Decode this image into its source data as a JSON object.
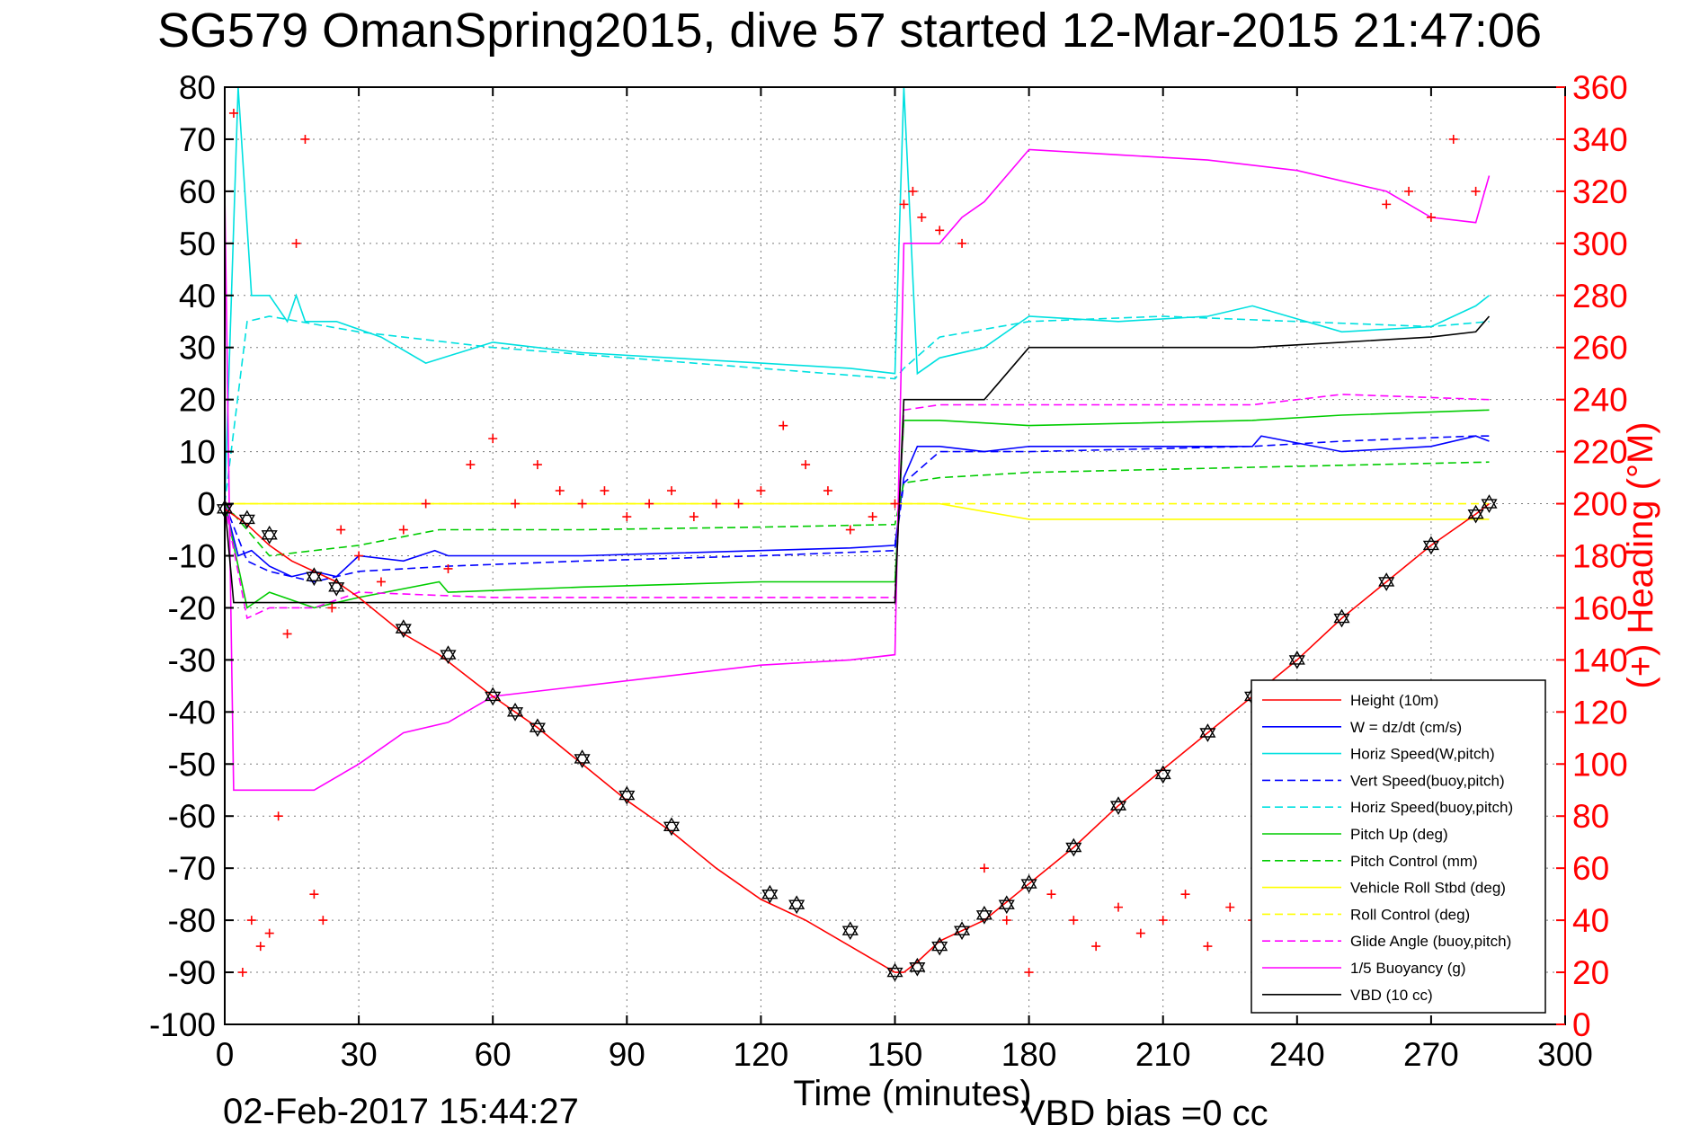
{
  "figure": {
    "title": "SG579 OmanSpring2015, dive 57 started 12-Mar-2015 21:47:06",
    "xlabel": "Time (minutes)",
    "ylabel_right": "(+) Heading (°M)",
    "timestamp": "02-Feb-2017 15:44:27",
    "vbd_note": "VBD bias =0 cc"
  },
  "chart_data": {
    "type": "line",
    "title": "SG579 OmanSpring2015, dive 57 started 12-Mar-2015 21:47:06",
    "xlabel": "Time (minutes)",
    "ylabel": "",
    "ylabel_right": "(+) Heading (°M)",
    "xlim": [
      0,
      300
    ],
    "ylim": [
      -100,
      80
    ],
    "ylim_right": [
      0,
      360
    ],
    "xticks": [
      0,
      30,
      60,
      90,
      120,
      150,
      180,
      210,
      240,
      270,
      300
    ],
    "yticks": [
      -100,
      -90,
      -80,
      -70,
      -60,
      -50,
      -40,
      -30,
      -20,
      -10,
      0,
      10,
      20,
      30,
      40,
      50,
      60,
      70,
      80
    ],
    "yticks_right": [
      0,
      20,
      40,
      60,
      80,
      100,
      120,
      140,
      160,
      180,
      200,
      220,
      240,
      260,
      280,
      300,
      320,
      340,
      360
    ],
    "grid": true,
    "legend_position": "lower-right",
    "series": [
      {
        "name": "Height (10m)",
        "color": "#ff0000",
        "dash": "solid",
        "x": [
          0,
          5,
          10,
          15,
          20,
          25,
          30,
          40,
          48,
          60,
          70,
          80,
          90,
          100,
          110,
          120,
          130,
          140,
          150,
          152,
          155,
          160,
          170,
          180,
          190,
          200,
          210,
          220,
          230,
          240,
          250,
          260,
          270,
          280,
          283
        ],
        "y": [
          -1,
          -4,
          -8,
          -11,
          -13,
          -15,
          -18,
          -25,
          -29,
          -37,
          -43,
          -50,
          -57,
          -63,
          -70,
          -76,
          -80,
          -85,
          -90,
          -90,
          -88,
          -84,
          -80,
          -73,
          -66,
          -58,
          -51,
          -44,
          -37,
          -30,
          -22,
          -15,
          -8,
          -2,
          0
        ]
      },
      {
        "name": "W = dz/dt (cm/s)",
        "color": "#0000ff",
        "dash": "solid",
        "x": [
          0,
          3,
          6,
          10,
          15,
          20,
          25,
          30,
          40,
          47,
          50,
          60,
          80,
          100,
          120,
          140,
          150,
          152,
          155,
          160,
          170,
          180,
          200,
          230,
          232,
          250,
          270,
          280,
          283
        ],
        "y": [
          0,
          -10,
          -9,
          -12,
          -14,
          -13,
          -14,
          -10,
          -11,
          -9,
          -10,
          -10,
          -10,
          -9.5,
          -9,
          -8.5,
          -8,
          5,
          11,
          11,
          10,
          11,
          11,
          11,
          13,
          10,
          11,
          13,
          12
        ]
      },
      {
        "name": "Horiz Speed(W,pitch)",
        "color": "#00e0e0",
        "dash": "solid",
        "x": [
          0,
          3,
          6,
          10,
          14,
          16,
          18,
          25,
          35,
          45,
          60,
          80,
          100,
          120,
          140,
          150,
          152,
          155,
          160,
          170,
          180,
          200,
          220,
          230,
          250,
          270,
          280,
          283
        ],
        "y": [
          0,
          80,
          40,
          40,
          35,
          40,
          35,
          35,
          32,
          27,
          31,
          29,
          28,
          27,
          26,
          25,
          80,
          25,
          28,
          30,
          36,
          35,
          36,
          38,
          33,
          34,
          38,
          40
        ]
      },
      {
        "name": "Vert Speed(buoy,pitch)",
        "color": "#0000ff",
        "dash": "dashed",
        "x": [
          0,
          5,
          10,
          20,
          30,
          50,
          80,
          120,
          150,
          152,
          160,
          180,
          230,
          250,
          280,
          283
        ],
        "y": [
          0,
          -11,
          -13,
          -15,
          -13,
          -12,
          -11,
          -10,
          -9,
          4,
          10,
          10,
          11,
          12,
          13,
          13
        ]
      },
      {
        "name": "Horiz Speed(buoy,pitch)",
        "color": "#00e0e0",
        "dash": "dashed",
        "x": [
          0,
          5,
          10,
          30,
          60,
          90,
          120,
          150,
          152,
          160,
          180,
          210,
          240,
          270,
          283
        ],
        "y": [
          0,
          35,
          36,
          33,
          30,
          28,
          26,
          24,
          26,
          32,
          35,
          36,
          35,
          34,
          35
        ]
      },
      {
        "name": "Pitch Up (deg)",
        "color": "#00cc00",
        "dash": "solid",
        "x": [
          0,
          5,
          10,
          20,
          30,
          48,
          50,
          80,
          120,
          150,
          152,
          160,
          180,
          230,
          250,
          283
        ],
        "y": [
          0,
          -20,
          -17,
          -20,
          -18,
          -15,
          -17,
          -16,
          -15,
          -15,
          16,
          16,
          15,
          16,
          17,
          18
        ]
      },
      {
        "name": "Pitch Control (mm)",
        "color": "#00cc00",
        "dash": "dashed",
        "x": [
          0,
          10,
          30,
          48,
          80,
          120,
          150,
          152,
          160,
          180,
          230,
          283
        ],
        "y": [
          0,
          -10,
          -8,
          -5,
          -5,
          -4.5,
          -4,
          4,
          5,
          6,
          7,
          8
        ]
      },
      {
        "name": "Vehicle Roll Stbd (deg)",
        "color": "#ffff00",
        "dash": "solid",
        "x": [
          0,
          20,
          40,
          60,
          80,
          100,
          120,
          140,
          150,
          160,
          180,
          200,
          220,
          240,
          260,
          280,
          283
        ],
        "y": [
          0,
          0,
          0,
          0,
          0,
          0,
          0,
          0,
          0,
          0,
          -3,
          -3,
          -3,
          -3,
          -3,
          -3,
          -3
        ]
      },
      {
        "name": "Roll Control (deg)",
        "color": "#ffff00",
        "dash": "dashed",
        "x": [
          0,
          20,
          40,
          60,
          80,
          100,
          120,
          140,
          150,
          160,
          180,
          200,
          220,
          240,
          260,
          283
        ],
        "y": [
          0,
          0,
          0,
          0,
          0,
          0,
          0,
          0,
          0,
          0,
          0,
          0,
          0,
          0,
          0,
          0
        ]
      },
      {
        "name": "Glide Angle (buoy,pitch)",
        "color": "#ff00ff",
        "dash": "dashed",
        "x": [
          0,
          5,
          10,
          20,
          30,
          60,
          100,
          150,
          152,
          160,
          180,
          230,
          250,
          283
        ],
        "y": [
          0,
          -22,
          -20,
          -20,
          -17,
          -18,
          -18,
          -18,
          18,
          19,
          19,
          19,
          21,
          20
        ]
      },
      {
        "name": "1/5 Buoyancy (g)",
        "color": "#ff00ff",
        "dash": "solid",
        "x": [
          0,
          1,
          2,
          10,
          15,
          20,
          30,
          40,
          50,
          60,
          80,
          100,
          120,
          140,
          150,
          152,
          155,
          160,
          165,
          170,
          175,
          180,
          200,
          220,
          240,
          260,
          270,
          280,
          283
        ],
        "y": [
          60,
          0,
          -55,
          -55,
          -55,
          -55,
          -50,
          -44,
          -42,
          -37,
          -35,
          -33,
          -31,
          -30,
          -29,
          50,
          50,
          50,
          55,
          58,
          63,
          68,
          67,
          66,
          64,
          60,
          55,
          54,
          63
        ]
      },
      {
        "name": "VBD (10 cc)",
        "color": "#000000",
        "dash": "solid",
        "x": [
          0,
          2,
          50,
          100,
          150,
          152,
          160,
          170,
          175,
          180,
          200,
          230,
          250,
          270,
          280,
          283
        ],
        "y": [
          0,
          -19,
          -19,
          -19,
          -19,
          20,
          20,
          20,
          25,
          30,
          30,
          30,
          31,
          32,
          33,
          36
        ]
      }
    ],
    "heading_points": {
      "name": "Heading",
      "color": "#ff0000",
      "axis": "right",
      "x": [
        2,
        4,
        6,
        8,
        10,
        12,
        14,
        16,
        18,
        20,
        22,
        24,
        26,
        30,
        35,
        40,
        45,
        50,
        55,
        60,
        65,
        70,
        75,
        80,
        85,
        90,
        95,
        100,
        105,
        110,
        115,
        120,
        125,
        130,
        135,
        140,
        145,
        150,
        152,
        154,
        156,
        160,
        165,
        170,
        175,
        180,
        185,
        190,
        195,
        200,
        205,
        210,
        215,
        220,
        225,
        230,
        235,
        240,
        245,
        250,
        255,
        260,
        265,
        270,
        275,
        280
      ],
      "y": [
        350,
        20,
        40,
        30,
        35,
        80,
        150,
        300,
        340,
        50,
        40,
        160,
        190,
        180,
        170,
        190,
        200,
        175,
        215,
        225,
        200,
        215,
        205,
        200,
        205,
        195,
        200,
        205,
        195,
        200,
        200,
        205,
        230,
        215,
        205,
        190,
        195,
        200,
        315,
        320,
        310,
        305,
        300,
        60,
        40,
        20,
        50,
        40,
        30,
        45,
        35,
        40,
        50,
        30,
        45,
        40,
        45,
        50,
        40,
        55,
        45,
        315,
        320,
        310,
        340,
        320
      ]
    },
    "markers": {
      "x": [
        0,
        5,
        10,
        20,
        25,
        40,
        50,
        60,
        65,
        70,
        80,
        90,
        100,
        122,
        128,
        140,
        150,
        155,
        160,
        165,
        170,
        175,
        180,
        190,
        200,
        210,
        220,
        230,
        240,
        250,
        260,
        270,
        280,
        283
      ],
      "y": [
        -1,
        -3,
        -6,
        -14,
        -16,
        -24,
        -29,
        -37,
        -40,
        -43,
        -49,
        -56,
        -62,
        -75,
        -77,
        -82,
        -90,
        -89,
        -85,
        -82,
        -79,
        -77,
        -73,
        -66,
        -58,
        -52,
        -44,
        -37,
        -30,
        -22,
        -15,
        -8,
        -2,
        0
      ]
    },
    "legend_entries": [
      "Height (10m)",
      "W = dz/dt (cm/s)",
      "Horiz Speed(W,pitch)",
      "Vert Speed(buoy,pitch)",
      "Horiz Speed(buoy,pitch)",
      "Pitch Up (deg)",
      "Pitch Control (mm)",
      "Vehicle Roll Stbd (deg)",
      "Roll Control (deg)",
      "Glide Angle (buoy,pitch)",
      "1/5 Buoyancy (g)",
      "VBD (10 cc)"
    ]
  }
}
